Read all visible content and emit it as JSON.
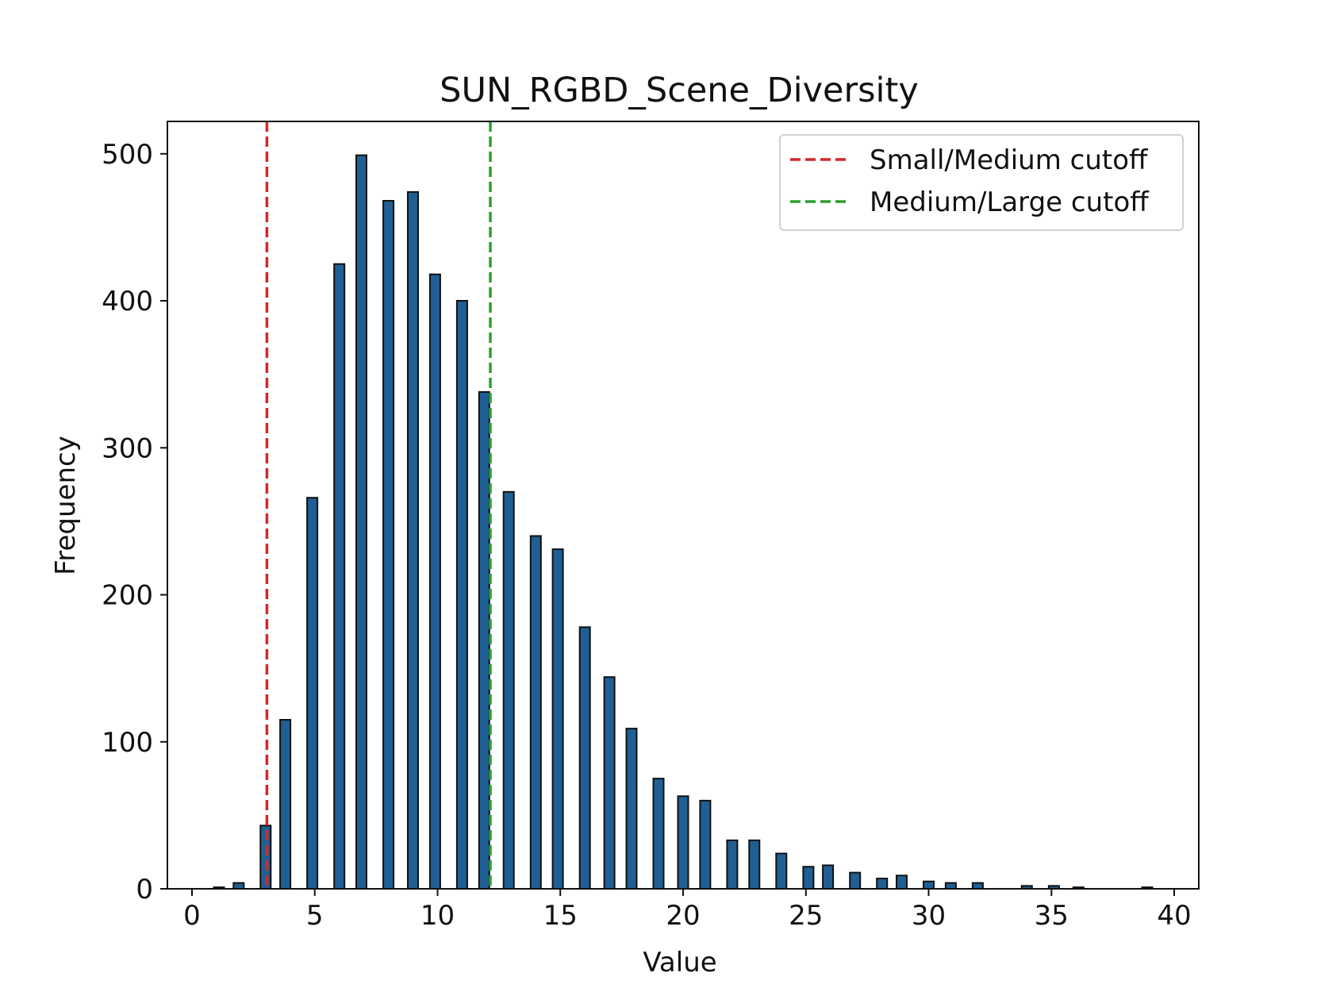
{
  "chart_data": {
    "type": "bar",
    "title": "SUN_RGBD_Scene_Diversity",
    "xlabel": "Value",
    "ylabel": "Frequency",
    "xlim": [
      -1,
      41
    ],
    "ylim": [
      0,
      522
    ],
    "xticks": [
      0,
      5,
      10,
      15,
      20,
      25,
      30,
      35,
      40
    ],
    "yticks": [
      0,
      100,
      200,
      300,
      400,
      500
    ],
    "bar_color": "#1f5f94",
    "bar_edge_color": "#111111",
    "bins": [
      {
        "x": 1.1,
        "value": 1
      },
      {
        "x": 1.9,
        "value": 4
      },
      {
        "x": 3.0,
        "value": 43
      },
      {
        "x": 3.8,
        "value": 115
      },
      {
        "x": 4.9,
        "value": 266
      },
      {
        "x": 6.0,
        "value": 425
      },
      {
        "x": 6.9,
        "value": 499
      },
      {
        "x": 8.0,
        "value": 468
      },
      {
        "x": 9.0,
        "value": 474
      },
      {
        "x": 9.9,
        "value": 418
      },
      {
        "x": 11.0,
        "value": 400
      },
      {
        "x": 11.9,
        "value": 338
      },
      {
        "x": 12.9,
        "value": 270
      },
      {
        "x": 14.0,
        "value": 240
      },
      {
        "x": 14.9,
        "value": 231
      },
      {
        "x": 16.0,
        "value": 178
      },
      {
        "x": 17.0,
        "value": 144
      },
      {
        "x": 17.9,
        "value": 109
      },
      {
        "x": 19.0,
        "value": 75
      },
      {
        "x": 20.0,
        "value": 63
      },
      {
        "x": 20.9,
        "value": 60
      },
      {
        "x": 22.0,
        "value": 33
      },
      {
        "x": 22.9,
        "value": 33
      },
      {
        "x": 24.0,
        "value": 24
      },
      {
        "x": 25.1,
        "value": 15
      },
      {
        "x": 25.9,
        "value": 16
      },
      {
        "x": 27.0,
        "value": 11
      },
      {
        "x": 28.1,
        "value": 7
      },
      {
        "x": 28.9,
        "value": 9
      },
      {
        "x": 30.0,
        "value": 5
      },
      {
        "x": 30.9,
        "value": 4
      },
      {
        "x": 32.0,
        "value": 4
      },
      {
        "x": 34.0,
        "value": 2
      },
      {
        "x": 35.1,
        "value": 2
      },
      {
        "x": 36.1,
        "value": 1
      },
      {
        "x": 38.9,
        "value": 1
      }
    ],
    "reference_lines": [
      {
        "name": "Small/Medium cutoff",
        "x": 3.05,
        "color": "#d62728"
      },
      {
        "name": "Medium/Large cutoff",
        "x": 12.15,
        "color": "#2ca02c"
      }
    ],
    "legend_position": "top-right",
    "grid": false
  }
}
